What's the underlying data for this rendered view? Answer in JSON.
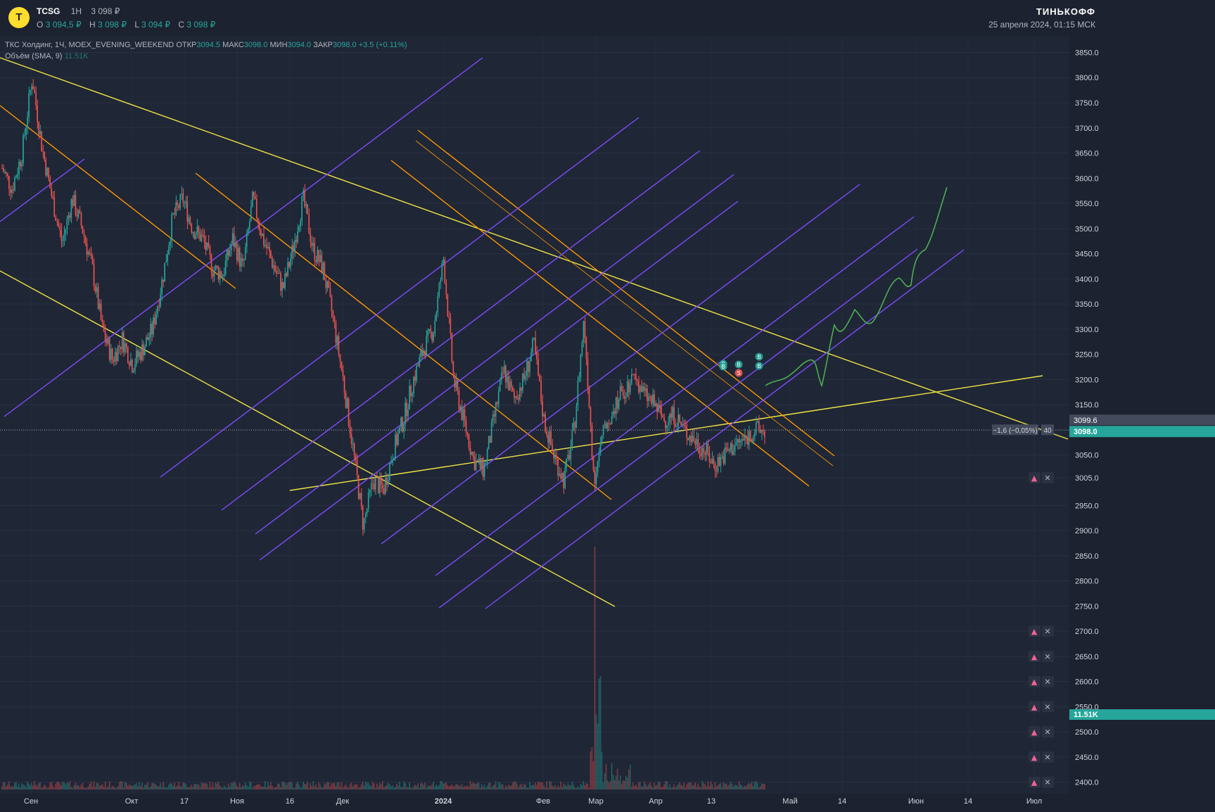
{
  "header": {
    "logo_letter": "T",
    "ticker": "TCSG",
    "interval": "1H",
    "price": "3 098 ₽",
    "ohlc": [
      {
        "k": "O",
        "v": "3 094,5 ₽"
      },
      {
        "k": "H",
        "v": "3 098 ₽"
      },
      {
        "k": "L",
        "v": "3 094 ₽"
      },
      {
        "k": "C",
        "v": "3 098 ₽"
      }
    ],
    "brand": "ТИНЬКОФФ",
    "datetime": "25 апреля 2024, 01:15 МСК"
  },
  "legend": {
    "symbol_line": "ТКС Холдинг, 1Ч, MOEX_EVENING_WEEKEND",
    "open_label": "ОТКР",
    "open_value": "3094.5",
    "high_label": "МАКС",
    "high_value": "3098.0",
    "low_label": "МИН",
    "low_value": "3094.0",
    "close_label": "ЗАКР",
    "close_value": "3098.0",
    "change": "+3.5 (+0.11%)",
    "volume_label": "Объём (SMA, 9)",
    "volume_value": "11.51K"
  },
  "colors": {
    "background": "#1f2636",
    "up": "#26a69a",
    "down": "#ef5350",
    "trend_yellow": "#f0e442",
    "trend_orange": "#ff9800",
    "channel_purple": "#7c4dff",
    "projection_green": "#4caf50"
  },
  "chart_data": {
    "type": "candlestick",
    "title": "",
    "y_ticks": [
      "3850.0",
      "3800.0",
      "3750.0",
      "3700.0",
      "3650.0",
      "3600.0",
      "3550.0",
      "3500.0",
      "3450.0",
      "3400.0",
      "3350.0",
      "3300.0",
      "3250.0",
      "3200.0",
      "3150.0",
      "3100.0",
      "3050.0",
      "3005.0",
      "2950.0",
      "2900.0",
      "2850.0",
      "2800.0",
      "2750.0",
      "2700.0",
      "2650.0",
      "2600.0",
      "2550.0",
      "2500.0",
      "2450.0",
      "2400.0"
    ],
    "x_ticks": [
      "Сен",
      "Окт",
      "17",
      "Ноя",
      "16",
      "Дек",
      "2024",
      "Фев",
      "Мар",
      "Апр",
      "13",
      "Май",
      "14",
      "Июн",
      "14",
      "Июл"
    ],
    "ylim": [
      2380,
      3880
    ],
    "last_price": "3098.0",
    "crosshair_price": "3099.6",
    "crosshair_change": "−1,6 (−0,05%)",
    "crosshair_bars": "40",
    "volume_last": "11.51K",
    "price_path": [
      [
        0,
        3620
      ],
      [
        1,
        3580
      ],
      [
        2,
        3650
      ],
      [
        3,
        3800
      ],
      [
        4,
        3660
      ],
      [
        5,
        3560
      ],
      [
        6,
        3470
      ],
      [
        7,
        3560
      ],
      [
        8,
        3500
      ],
      [
        9,
        3420
      ],
      [
        10,
        3300
      ],
      [
        11,
        3240
      ],
      [
        12,
        3280
      ],
      [
        13,
        3230
      ],
      [
        14,
        3260
      ],
      [
        15,
        3300
      ],
      [
        16,
        3400
      ],
      [
        17,
        3520
      ],
      [
        18,
        3560
      ],
      [
        19,
        3500
      ],
      [
        20,
        3480
      ],
      [
        21,
        3420
      ],
      [
        22,
        3410
      ],
      [
        23,
        3480
      ],
      [
        24,
        3420
      ],
      [
        25,
        3560
      ],
      [
        26,
        3480
      ],
      [
        27,
        3430
      ],
      [
        28,
        3380
      ],
      [
        29,
        3460
      ],
      [
        30,
        3560
      ],
      [
        31,
        3460
      ],
      [
        32,
        3420
      ],
      [
        33,
        3320
      ],
      [
        34,
        3200
      ],
      [
        35,
        3060
      ],
      [
        36,
        2910
      ],
      [
        37,
        3000
      ],
      [
        38,
        2980
      ],
      [
        39,
        3060
      ],
      [
        40,
        3120
      ],
      [
        41,
        3200
      ],
      [
        42,
        3260
      ],
      [
        43,
        3300
      ],
      [
        44,
        3440
      ],
      [
        45,
        3200
      ],
      [
        46,
        3120
      ],
      [
        47,
        3040
      ],
      [
        48,
        3020
      ],
      [
        49,
        3120
      ],
      [
        50,
        3220
      ],
      [
        51,
        3160
      ],
      [
        52,
        3200
      ],
      [
        53,
        3270
      ],
      [
        54,
        3120
      ],
      [
        55,
        3050
      ],
      [
        56,
        3000
      ],
      [
        57,
        3100
      ],
      [
        58,
        3320
      ],
      [
        59,
        3000
      ],
      [
        60,
        3100
      ],
      [
        61,
        3150
      ],
      [
        62,
        3180
      ],
      [
        63,
        3210
      ],
      [
        64,
        3170
      ],
      [
        65,
        3150
      ],
      [
        66,
        3120
      ],
      [
        67,
        3130
      ],
      [
        68,
        3100
      ],
      [
        69,
        3080
      ],
      [
        70,
        3060
      ],
      [
        71,
        3030
      ],
      [
        72,
        3050
      ],
      [
        73,
        3070
      ],
      [
        74,
        3080
      ],
      [
        75,
        3100
      ],
      [
        76,
        3098
      ]
    ],
    "markers": [
      {
        "type": "B",
        "x_index": 72
      },
      {
        "type": "S",
        "x_index": 73
      },
      {
        "type": "B",
        "x_index": 75
      },
      {
        "type": "B",
        "x_index": 76
      }
    ],
    "alert_levels": [
      "3005.0",
      "2700.0",
      "2650.0",
      "2600.0",
      "2550.0",
      "2500.0",
      "2450.0",
      "2400.0"
    ]
  }
}
